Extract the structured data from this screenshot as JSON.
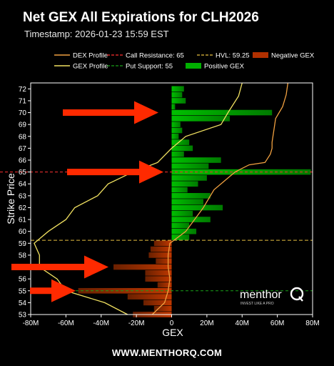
{
  "header": {
    "title": "Net GEX All Expirations for CLH2026",
    "subtitle": "Timestamp: 2026-01-23 15:59 EST"
  },
  "footer": {
    "url": "WWW.MENTHORQ.COM"
  },
  "watermark": {
    "brand": "menthor",
    "tagline": "INVEST LIKE A PRO"
  },
  "colors": {
    "positive": "#00b000",
    "negative": "#b03000",
    "dex": "#f0a040",
    "gex": "#f0e060",
    "call_resistance": "#ff3030",
    "put_support": "#18a018",
    "hvl": "#e8c040",
    "arrow": "#ff2a00"
  },
  "chart_data": {
    "type": "bar",
    "orientation": "horizontal",
    "title": "Net GEX All Expirations for CLH2026",
    "xlabel": "GEX",
    "ylabel": "Strike Price",
    "xlim": [
      -80,
      80
    ],
    "ylim": [
      53,
      72.5
    ],
    "x_unit": "M",
    "x_ticks": [
      -80,
      -60,
      -40,
      -20,
      0,
      20,
      40,
      60,
      80
    ],
    "x_tick_labels": [
      "-80M",
      "-60M",
      "-40M",
      "-20M",
      "0",
      "20M",
      "40M",
      "60M",
      "80M"
    ],
    "y_ticks": [
      53,
      54,
      55,
      56,
      57,
      58,
      59,
      60,
      61,
      62,
      63,
      64,
      65,
      66,
      67,
      68,
      69,
      70,
      71,
      72
    ],
    "bars": [
      {
        "strike": 72.0,
        "gex": 7
      },
      {
        "strike": 71.5,
        "gex": 6
      },
      {
        "strike": 71.0,
        "gex": 8
      },
      {
        "strike": 70.5,
        "gex": 2
      },
      {
        "strike": 70.0,
        "gex": 57
      },
      {
        "strike": 69.5,
        "gex": 33
      },
      {
        "strike": 69.0,
        "gex": 5
      },
      {
        "strike": 68.5,
        "gex": 6
      },
      {
        "strike": 68.0,
        "gex": 4
      },
      {
        "strike": 67.5,
        "gex": 10
      },
      {
        "strike": 67.0,
        "gex": 12
      },
      {
        "strike": 66.5,
        "gex": 7
      },
      {
        "strike": 66.0,
        "gex": 28
      },
      {
        "strike": 65.5,
        "gex": 21
      },
      {
        "strike": 65.0,
        "gex": 79
      },
      {
        "strike": 64.5,
        "gex": 20
      },
      {
        "strike": 64.0,
        "gex": 15
      },
      {
        "strike": 63.5,
        "gex": 9
      },
      {
        "strike": 63.0,
        "gex": 22
      },
      {
        "strike": 62.5,
        "gex": 18
      },
      {
        "strike": 62.0,
        "gex": 29
      },
      {
        "strike": 61.5,
        "gex": 12
      },
      {
        "strike": 61.0,
        "gex": 22
      },
      {
        "strike": 60.5,
        "gex": 10
      },
      {
        "strike": 60.0,
        "gex": 14
      },
      {
        "strike": 59.5,
        "gex": 10
      },
      {
        "strike": 59.0,
        "gex": -10
      },
      {
        "strike": 58.5,
        "gex": -12
      },
      {
        "strike": 58.0,
        "gex": -13
      },
      {
        "strike": 57.5,
        "gex": -9
      },
      {
        "strike": 57.0,
        "gex": -33
      },
      {
        "strike": 56.5,
        "gex": -15
      },
      {
        "strike": 56.0,
        "gex": -15
      },
      {
        "strike": 55.5,
        "gex": -8
      },
      {
        "strike": 55.0,
        "gex": -53
      },
      {
        "strike": 54.5,
        "gex": -25
      },
      {
        "strike": 54.0,
        "gex": -16
      },
      {
        "strike": 53.5,
        "gex": -10
      },
      {
        "strike": 53.0,
        "gex": -22
      }
    ],
    "levels": {
      "call_resistance": 65,
      "put_support": 55,
      "hvl": 59.25
    },
    "dex_profile": [
      [
        -11,
        53
      ],
      [
        -4,
        54
      ],
      [
        -2,
        55
      ],
      [
        -1,
        56
      ],
      [
        -2,
        57
      ],
      [
        -2,
        58
      ],
      [
        -1,
        59
      ],
      [
        8,
        60
      ],
      [
        18,
        62
      ],
      [
        24,
        63.5
      ],
      [
        32,
        64.5
      ],
      [
        36,
        65
      ],
      [
        44,
        65.6
      ],
      [
        53,
        65.8
      ],
      [
        56,
        66.5
      ],
      [
        57,
        67
      ],
      [
        57,
        67.5
      ],
      [
        58,
        68.5
      ],
      [
        59,
        69.5
      ],
      [
        61,
        70
      ],
      [
        63,
        70.5
      ],
      [
        64,
        71
      ],
      [
        65,
        71.5
      ],
      [
        66,
        72.5
      ]
    ],
    "gex_profile": [
      [
        -25,
        53
      ],
      [
        -38,
        54
      ],
      [
        -60,
        55
      ],
      [
        -65,
        56
      ],
      [
        -75,
        57
      ],
      [
        -75,
        58
      ],
      [
        -78,
        59
      ],
      [
        -70,
        60
      ],
      [
        -60,
        61
      ],
      [
        -55,
        62
      ],
      [
        -42,
        63
      ],
      [
        -36,
        64
      ],
      [
        -22,
        65
      ],
      [
        -8,
        65.8
      ],
      [
        0,
        67
      ],
      [
        8,
        68
      ],
      [
        28,
        69
      ],
      [
        32,
        70
      ],
      [
        38,
        71.4
      ],
      [
        40,
        72.5
      ]
    ],
    "legend": {
      "placement": "top",
      "items": [
        {
          "label": "DEX Profile",
          "kind": "line",
          "color": "#f0a040"
        },
        {
          "label": "GEX Profile",
          "kind": "line",
          "color": "#f0e060"
        },
        {
          "label": "Call Resistance: 65",
          "kind": "dash",
          "color": "#ff3030"
        },
        {
          "label": "Put Support: 55",
          "kind": "dash",
          "color": "#18a018"
        },
        {
          "label": "HVL: 59.25",
          "kind": "dash",
          "color": "#e8c040"
        },
        {
          "label": "Positive GEX",
          "kind": "patch",
          "color": "#00b000"
        },
        {
          "label": "Negative GEX",
          "kind": "patch",
          "color": "#b03000"
        }
      ]
    },
    "annotations": [
      {
        "type": "arrow",
        "strike": 70
      },
      {
        "type": "arrow",
        "strike": 65
      },
      {
        "type": "arrow",
        "strike": 57
      },
      {
        "type": "arrow",
        "strike": 55
      }
    ],
    "grid": false
  }
}
